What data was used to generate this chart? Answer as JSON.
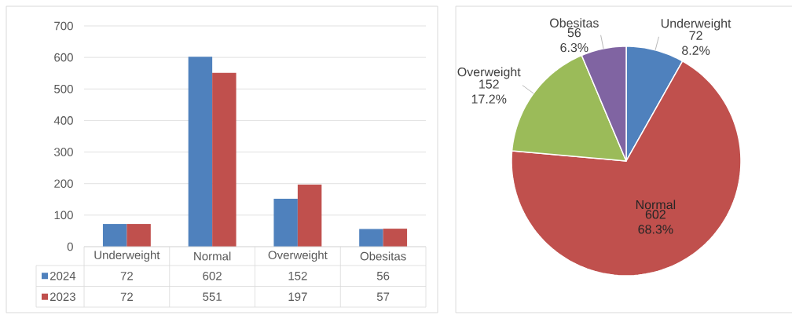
{
  "chart_data": [
    {
      "type": "bar",
      "categories": [
        "Underweight",
        "Normal",
        "Overweight",
        "Obesitas"
      ],
      "series": [
        {
          "name": "2024",
          "color": "#4f81bd",
          "values": [
            72,
            602,
            152,
            56
          ]
        },
        {
          "name": "2023",
          "color": "#c0504d",
          "values": [
            72,
            551,
            197,
            57
          ]
        }
      ],
      "ylim": [
        0,
        700
      ],
      "yticks": [
        0,
        100,
        200,
        300,
        400,
        500,
        600,
        700
      ],
      "grid": "y",
      "legend": "bottom",
      "data_labels": true
    },
    {
      "type": "pie",
      "categories": [
        "Underweight",
        "Normal",
        "Overweight",
        "Obesitas"
      ],
      "values": [
        72,
        602,
        152,
        56
      ],
      "colors": [
        "#4f81bd",
        "#c0504d",
        "#9bbb59",
        "#8064a2"
      ],
      "value_labels": [
        "72 8.2%",
        "602 68.3%",
        "152 17.2%",
        "56 6.3%"
      ]
    }
  ]
}
